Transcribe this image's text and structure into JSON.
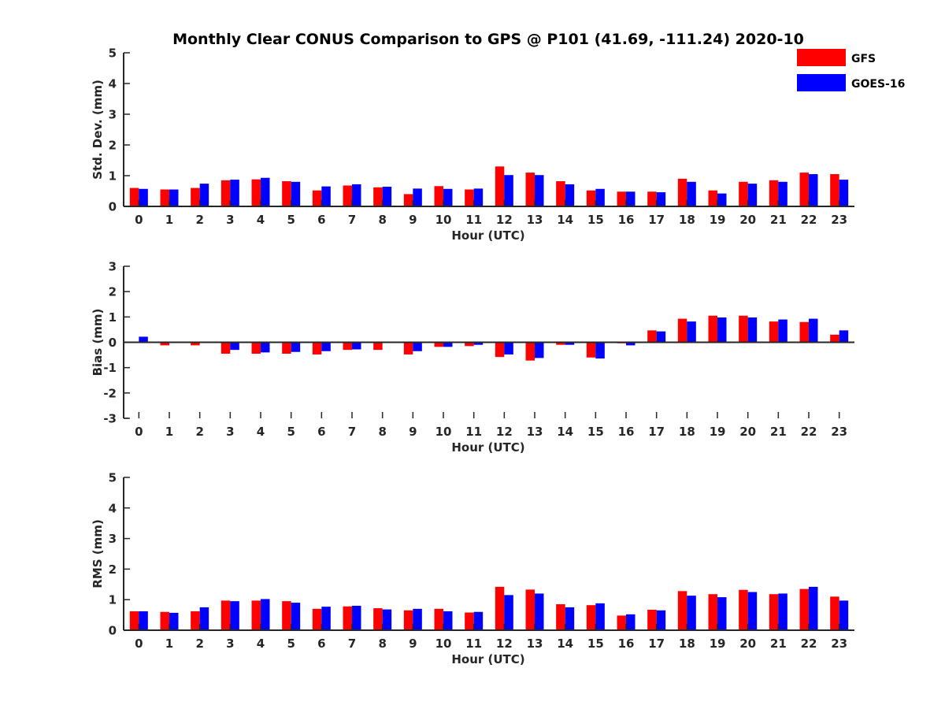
{
  "chart_data": {
    "type": "bar",
    "title": "Monthly Clear CONUS Comparison to GPS @ P101 (41.69, -111.24) 2020-10",
    "legend": {
      "placement": "top-right",
      "entries": [
        {
          "name": "GFS",
          "color": "#ff0000"
        },
        {
          "name": "GOES-16",
          "color": "#0000ff"
        }
      ]
    },
    "categories": [
      "0",
      "1",
      "2",
      "3",
      "4",
      "5",
      "6",
      "7",
      "8",
      "9",
      "10",
      "11",
      "12",
      "13",
      "14",
      "15",
      "16",
      "17",
      "18",
      "19",
      "20",
      "21",
      "22",
      "23"
    ],
    "panels": [
      {
        "id": "std",
        "ylabel": "Std. Dev. (mm)",
        "xlabel": "Hour (UTC)",
        "ylim": [
          0,
          5
        ],
        "yticks": [
          0,
          1,
          2,
          3,
          4,
          5
        ],
        "series": [
          {
            "name": "GFS",
            "values": [
              0.6,
              0.55,
              0.6,
              0.85,
              0.88,
              0.82,
              0.52,
              0.68,
              0.62,
              0.4,
              0.66,
              0.55,
              1.3,
              1.1,
              0.82,
              0.52,
              0.48,
              0.48,
              0.9,
              0.52,
              0.8,
              0.85,
              1.1,
              1.05
            ]
          },
          {
            "name": "GOES-16",
            "values": [
              0.57,
              0.55,
              0.74,
              0.87,
              0.93,
              0.8,
              0.65,
              0.72,
              0.64,
              0.58,
              0.57,
              0.58,
              1.02,
              1.02,
              0.72,
              0.57,
              0.48,
              0.46,
              0.8,
              0.42,
              0.74,
              0.8,
              1.05,
              0.87
            ]
          }
        ]
      },
      {
        "id": "bias",
        "ylabel": "Bias (mm)",
        "xlabel": "Hour (UTC)",
        "ylim": [
          -3,
          3
        ],
        "yticks": [
          -3,
          -2,
          -1,
          0,
          1,
          2,
          3
        ],
        "series": [
          {
            "name": "GFS",
            "values": [
              0.0,
              -0.12,
              -0.12,
              -0.45,
              -0.45,
              -0.45,
              -0.48,
              -0.3,
              -0.3,
              -0.48,
              -0.18,
              -0.15,
              -0.58,
              -0.72,
              -0.1,
              -0.6,
              -0.04,
              0.47,
              0.93,
              1.05,
              1.05,
              0.82,
              0.8,
              0.3
            ]
          },
          {
            "name": "GOES-16",
            "values": [
              0.22,
              -0.03,
              0.0,
              -0.3,
              -0.4,
              -0.38,
              -0.35,
              -0.28,
              -0.02,
              -0.35,
              -0.18,
              -0.1,
              -0.48,
              -0.62,
              -0.1,
              -0.64,
              -0.12,
              0.43,
              0.82,
              0.98,
              0.98,
              0.9,
              0.93,
              0.47
            ]
          }
        ]
      },
      {
        "id": "rms",
        "ylabel": "RMS (mm)",
        "xlabel": "Hour (UTC)",
        "ylim": [
          0,
          5
        ],
        "yticks": [
          0,
          1,
          2,
          3,
          4,
          5
        ],
        "series": [
          {
            "name": "GFS",
            "values": [
              0.62,
              0.6,
              0.62,
              0.97,
              0.97,
              0.95,
              0.7,
              0.78,
              0.72,
              0.65,
              0.7,
              0.58,
              1.42,
              1.33,
              0.85,
              0.82,
              0.48,
              0.67,
              1.28,
              1.18,
              1.32,
              1.18,
              1.35,
              1.1
            ]
          },
          {
            "name": "GOES-16",
            "values": [
              0.62,
              0.57,
              0.75,
              0.95,
              1.02,
              0.9,
              0.77,
              0.8,
              0.68,
              0.7,
              0.62,
              0.6,
              1.15,
              1.2,
              0.75,
              0.88,
              0.52,
              0.65,
              1.13,
              1.08,
              1.25,
              1.2,
              1.42,
              0.97
            ]
          }
        ]
      }
    ]
  }
}
